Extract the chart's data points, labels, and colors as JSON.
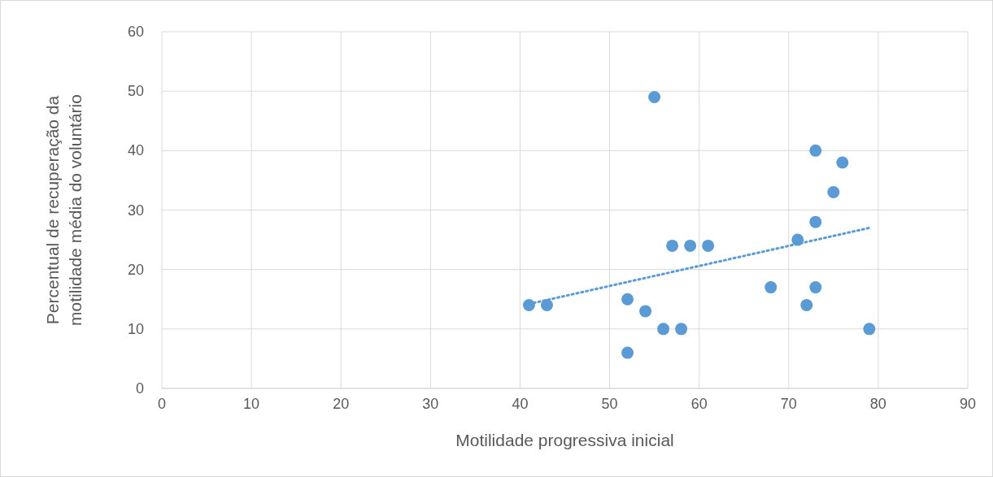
{
  "chart_data": {
    "type": "scatter",
    "xlabel": "Motilidade progressiva inicial",
    "ylabel": "Percentual de recuperação da motilidade média do voluntário",
    "xlim": [
      0,
      90
    ],
    "xticks": [
      0,
      10,
      20,
      30,
      40,
      50,
      60,
      70,
      80,
      90
    ],
    "ylim": [
      0,
      60
    ],
    "yticks": [
      0,
      10,
      20,
      30,
      40,
      50,
      60
    ],
    "grid": true,
    "marker": "circle",
    "series": [
      {
        "color": "#5b9bd5",
        "x": [
          41,
          43,
          52,
          52,
          54,
          55,
          56,
          57,
          58,
          59,
          61,
          68,
          71,
          72,
          73,
          73,
          73,
          75,
          76,
          79
        ],
        "values": [
          14,
          14,
          15,
          6,
          13,
          49,
          10,
          24,
          10,
          24,
          24,
          17,
          25,
          14,
          40,
          28,
          17,
          33,
          38,
          10
        ]
      },
      {
        "type": "line",
        "color": "#5b9bd5",
        "line_style": "dotted",
        "marker": "none",
        "x": [
          41,
          79
        ],
        "values": [
          14.2,
          27
        ]
      }
    ]
  }
}
